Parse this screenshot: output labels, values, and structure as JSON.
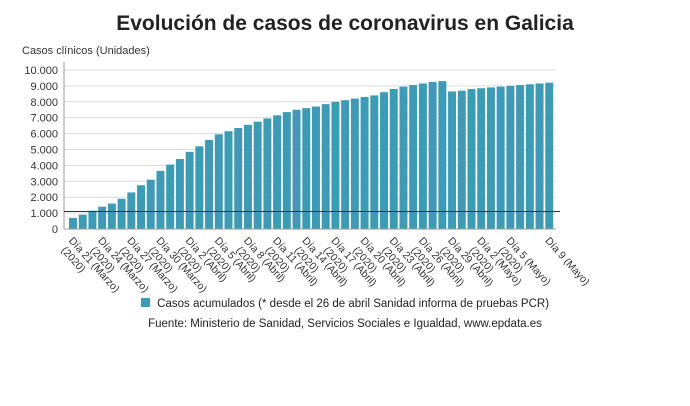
{
  "chart_data": {
    "type": "bar",
    "title": "Evolución de casos de coronavirus en Galicia",
    "ylabel": "Casos clínicos (Unidades)",
    "ylim": [
      0,
      10500
    ],
    "yticks": [
      0,
      1000,
      2000,
      3000,
      4000,
      5000,
      6000,
      7000,
      8000,
      9000,
      10000
    ],
    "ytick_labels": [
      "0",
      "1.000",
      "2.000",
      "3.000",
      "4.000",
      "5.000",
      "6.000",
      "7.000",
      "8.000",
      "9.000",
      "10.000"
    ],
    "reference_line": 1100,
    "x_tick_labels": [
      {
        "index": 0,
        "lines": [
          "Día 21 (Marzo)",
          "(2020)"
        ]
      },
      {
        "index": 3,
        "lines": [
          "Día 24 (Marzo)",
          "(2020)"
        ]
      },
      {
        "index": 6,
        "lines": [
          "Día 27 (Marzo)",
          "(2020)"
        ]
      },
      {
        "index": 9,
        "lines": [
          "Día 30 (Marzo)",
          "(2020)"
        ]
      },
      {
        "index": 12,
        "lines": [
          "Día 2 (Abril)",
          "(2020)"
        ]
      },
      {
        "index": 15,
        "lines": [
          "Día 5 (Abril)",
          "(2020)"
        ]
      },
      {
        "index": 18,
        "lines": [
          "Día 8 (Abril)",
          "(2020)"
        ]
      },
      {
        "index": 21,
        "lines": [
          "Día 11 (Abril)",
          "(2020)"
        ]
      },
      {
        "index": 24,
        "lines": [
          "Día 14 (Abril)",
          "(2020)"
        ]
      },
      {
        "index": 27,
        "lines": [
          "Día 17 (Abril)",
          "(2020)"
        ]
      },
      {
        "index": 30,
        "lines": [
          "Día 20 (Abril)",
          "(2020)"
        ]
      },
      {
        "index": 33,
        "lines": [
          "Día 23 (Abril)",
          "(2020)"
        ]
      },
      {
        "index": 36,
        "lines": [
          "Día 26 (Abril)",
          "(2020)"
        ]
      },
      {
        "index": 39,
        "lines": [
          "Día 29 (Abril)",
          "(2020)"
        ]
      },
      {
        "index": 42,
        "lines": [
          "Día 2 (Mayo)",
          "(2020)"
        ]
      },
      {
        "index": 45,
        "lines": [
          "Día 5 (Mayo)",
          "(2020)"
        ]
      },
      {
        "index": 49,
        "lines": [
          "Día 9 (Mayo)"
        ]
      }
    ],
    "series": [
      {
        "name": "Casos acumulados (* desde el 26 de abril Sanidad informa de pruebas PCR)",
        "color": "#3d9bb5",
        "values": [
          700,
          900,
          1150,
          1400,
          1600,
          1900,
          2300,
          2750,
          3100,
          3650,
          4050,
          4400,
          4850,
          5200,
          5600,
          5950,
          6150,
          6350,
          6550,
          6750,
          6950,
          7150,
          7350,
          7500,
          7600,
          7700,
          7850,
          8000,
          8100,
          8200,
          8300,
          8400,
          8600,
          8800,
          8950,
          9050,
          9150,
          9250,
          9300,
          8650,
          8700,
          8800,
          8850,
          8900,
          8950,
          9000,
          9050,
          9100,
          9150,
          9200
        ]
      }
    ]
  },
  "legend": {
    "label": "Casos acumulados (* desde el 26 de abril Sanidad informa de pruebas PCR)",
    "color": "#3d9bb5"
  },
  "source": "Fuente: Ministerio de Sanidad, Servicios Sociales e Igualdad, www.epdata.es"
}
